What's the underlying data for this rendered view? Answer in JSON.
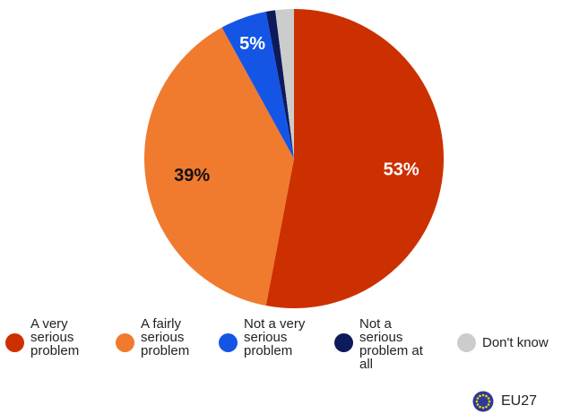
{
  "chart_data": {
    "type": "pie",
    "slices": [
      {
        "label": "A very\nserious\nproblem",
        "value": 53,
        "value_label": "53%",
        "color": "#cc3000",
        "label_color": "#ffffff"
      },
      {
        "label": "A fairly\nserious\nproblem",
        "value": 39,
        "value_label": "39%",
        "color": "#f07a2e",
        "label_color": "#111111"
      },
      {
        "label": "Not a very\nserious\nproblem",
        "value": 5,
        "value_label": "5%",
        "color": "#1455e6",
        "label_color": "#ffffff"
      },
      {
        "label": "Not a\nserious\nproblem at\nall",
        "value": 1,
        "value_label": "",
        "color": "#0d1a5c",
        "label_color": "#ffffff"
      },
      {
        "label": "Don't know",
        "value": 2,
        "value_label": "",
        "color": "#cccccc",
        "label_color": "#111111"
      }
    ],
    "legend_position": "bottom"
  },
  "badge": {
    "label": "EU27",
    "icon": "eu-flag-icon",
    "colors": {
      "flag": "#2a3b9a",
      "stars": "#ffd200"
    }
  }
}
